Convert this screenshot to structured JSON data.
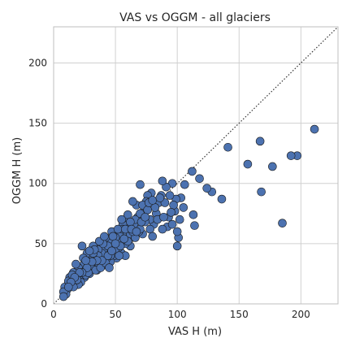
{
  "chart_data": {
    "type": "scatter",
    "title": "VAS vs OGGM - all glaciers",
    "xlabel": "VAS H (m)",
    "ylabel": "OGGM H (m)",
    "xlim": [
      0,
      230
    ],
    "ylim": [
      0,
      230
    ],
    "xticks": [
      "0",
      "50",
      "100",
      "150",
      "200"
    ],
    "yticks": [
      "0",
      "50",
      "100",
      "150",
      "200"
    ],
    "grid": true,
    "reference_line": "y = x",
    "marker_color": "#4c72b0",
    "points": [
      [
        211,
        145
      ],
      [
        197,
        123
      ],
      [
        192,
        123
      ],
      [
        177,
        114
      ],
      [
        185,
        67
      ],
      [
        167,
        135
      ],
      [
        168,
        93
      ],
      [
        157,
        116
      ],
      [
        141,
        130
      ],
      [
        136,
        87
      ],
      [
        128,
        93
      ],
      [
        124,
        96
      ],
      [
        118,
        104
      ],
      [
        112,
        110
      ],
      [
        113,
        74
      ],
      [
        114,
        65
      ],
      [
        105,
        80
      ],
      [
        100,
        48
      ],
      [
        101,
        55
      ],
      [
        106,
        99
      ],
      [
        103,
        88
      ],
      [
        99,
        87
      ],
      [
        96,
        100
      ],
      [
        98,
        77
      ],
      [
        102,
        70
      ],
      [
        97,
        82
      ],
      [
        92,
        64
      ],
      [
        88,
        62
      ],
      [
        87,
        90
      ],
      [
        91,
        97
      ],
      [
        88,
        102
      ],
      [
        93,
        72
      ],
      [
        85,
        84
      ],
      [
        83,
        75
      ],
      [
        81,
        66
      ],
      [
        79,
        92
      ],
      [
        78,
        70
      ],
      [
        76,
        90
      ],
      [
        75,
        85
      ],
      [
        73,
        77
      ],
      [
        72,
        58
      ],
      [
        70,
        99
      ],
      [
        67,
        82
      ],
      [
        69,
        60
      ],
      [
        68,
        72
      ],
      [
        64,
        85
      ],
      [
        65,
        66
      ],
      [
        63,
        55
      ],
      [
        62,
        48
      ],
      [
        61,
        64
      ],
      [
        59,
        70
      ],
      [
        58,
        50
      ],
      [
        57,
        60
      ],
      [
        56,
        66
      ],
      [
        55,
        42
      ],
      [
        54,
        52
      ],
      [
        53,
        58
      ],
      [
        52,
        46
      ],
      [
        51,
        38
      ],
      [
        50,
        55
      ],
      [
        49,
        40
      ],
      [
        48,
        48
      ],
      [
        47,
        60
      ],
      [
        46,
        35
      ],
      [
        45,
        52
      ],
      [
        44,
        44
      ],
      [
        43,
        38
      ],
      [
        42,
        55
      ],
      [
        41,
        46
      ],
      [
        40,
        32
      ],
      [
        39,
        42
      ],
      [
        38,
        50
      ],
      [
        37,
        36
      ],
      [
        36,
        45
      ],
      [
        35,
        28
      ],
      [
        34,
        40
      ],
      [
        33,
        34
      ],
      [
        32,
        48
      ],
      [
        31,
        30
      ],
      [
        30,
        38
      ],
      [
        29,
        25
      ],
      [
        28,
        35
      ],
      [
        27,
        42
      ],
      [
        26,
        30
      ],
      [
        25,
        22
      ],
      [
        24,
        32
      ],
      [
        23,
        48
      ],
      [
        22,
        27
      ],
      [
        21,
        20
      ],
      [
        20,
        30
      ],
      [
        19,
        24
      ],
      [
        18,
        33
      ],
      [
        17,
        18
      ],
      [
        16,
        26
      ],
      [
        15,
        20
      ],
      [
        14,
        15
      ],
      [
        13,
        22
      ],
      [
        12,
        17
      ],
      [
        11,
        12
      ],
      [
        10,
        8
      ],
      [
        9,
        14
      ],
      [
        8,
        10
      ],
      [
        8,
        6
      ],
      [
        12,
        19
      ],
      [
        15,
        24
      ],
      [
        18,
        22
      ],
      [
        22,
        18
      ],
      [
        26,
        24
      ],
      [
        30,
        32
      ],
      [
        34,
        28
      ],
      [
        38,
        30
      ],
      [
        42,
        34
      ],
      [
        46,
        40
      ],
      [
        50,
        45
      ],
      [
        54,
        48
      ],
      [
        58,
        40
      ],
      [
        62,
        58
      ],
      [
        66,
        55
      ],
      [
        70,
        62
      ],
      [
        74,
        68
      ],
      [
        78,
        62
      ],
      [
        82,
        80
      ],
      [
        60,
        74
      ],
      [
        56,
        62
      ],
      [
        52,
        62
      ],
      [
        48,
        56
      ],
      [
        44,
        48
      ],
      [
        40,
        50
      ],
      [
        36,
        40
      ],
      [
        32,
        42
      ],
      [
        28,
        26
      ],
      [
        24,
        38
      ],
      [
        20,
        16
      ],
      [
        16,
        14
      ],
      [
        64,
        60
      ],
      [
        72,
        82
      ],
      [
        80,
        56
      ],
      [
        90,
        84
      ],
      [
        94,
        90
      ],
      [
        95,
        76
      ],
      [
        66,
        70
      ],
      [
        60,
        52
      ],
      [
        45,
        30
      ],
      [
        37,
        52
      ],
      [
        33,
        45
      ],
      [
        27,
        30
      ],
      [
        55,
        70
      ],
      [
        62,
        68
      ],
      [
        70,
        75
      ],
      [
        76,
        78
      ],
      [
        84,
        70
      ],
      [
        58,
        62
      ],
      [
        50,
        50
      ],
      [
        44,
        40
      ],
      [
        41,
        56
      ],
      [
        39,
        36
      ],
      [
        35,
        36
      ],
      [
        31,
        35
      ],
      [
        29,
        44
      ],
      [
        26,
        36
      ],
      [
        23,
        26
      ],
      [
        21,
        26
      ],
      [
        19,
        20
      ],
      [
        17,
        22
      ],
      [
        14,
        18
      ],
      [
        12,
        14
      ],
      [
        47,
        44
      ],
      [
        53,
        40
      ],
      [
        57,
        54
      ],
      [
        63,
        62
      ],
      [
        67,
        60
      ],
      [
        71,
        68
      ],
      [
        74,
        72
      ],
      [
        77,
        84
      ],
      [
        80,
        86
      ],
      [
        86,
        88
      ],
      [
        89,
        72
      ],
      [
        96,
        66
      ],
      [
        100,
        60
      ]
    ]
  }
}
